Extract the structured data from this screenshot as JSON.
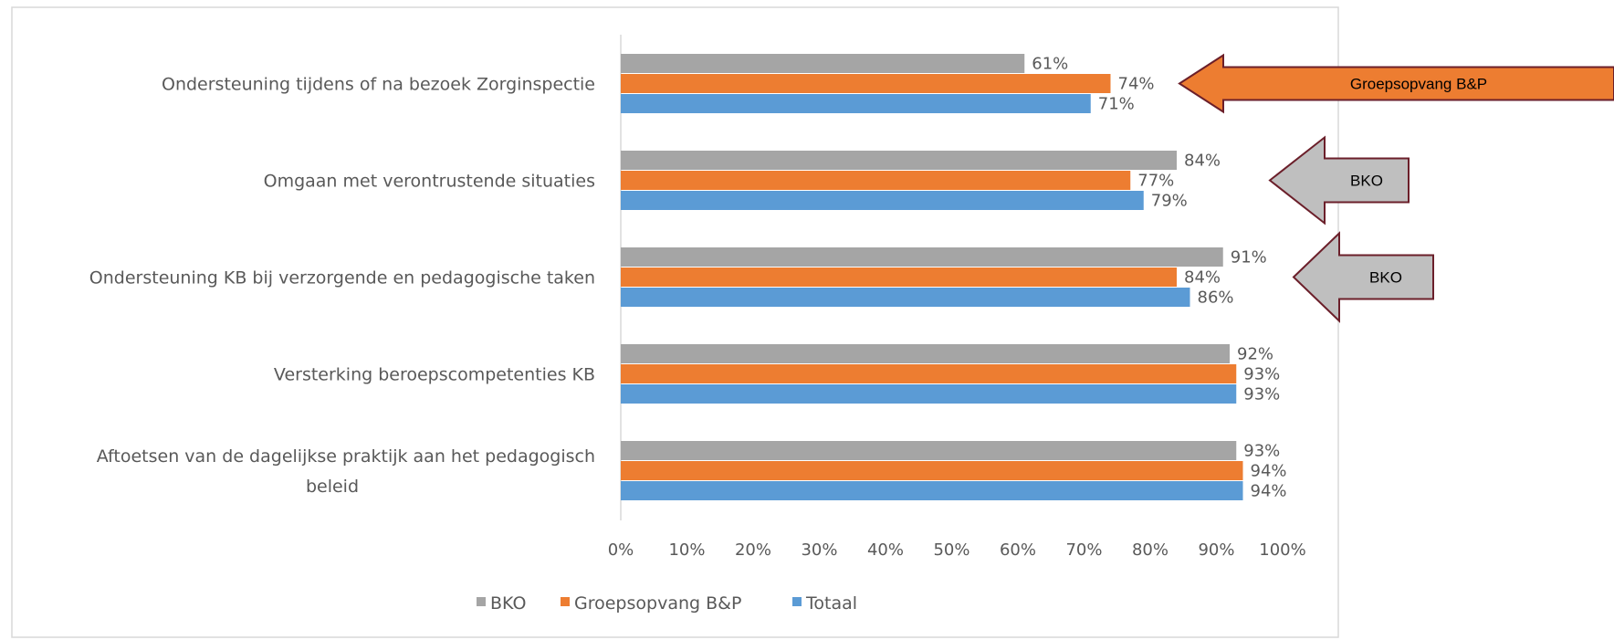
{
  "chart_data": {
    "type": "bar",
    "orientation": "horizontal",
    "title": "",
    "xlabel": "",
    "ylabel": "",
    "xlim": [
      0,
      100
    ],
    "x_ticks": [
      "0%",
      "10%",
      "20%",
      "30%",
      "40%",
      "50%",
      "60%",
      "70%",
      "80%",
      "90%",
      "100%"
    ],
    "grid": false,
    "legend_position": "bottom",
    "categories": [
      [
        "Ondersteuning tijdens of na bezoek Zorginspectie"
      ],
      [
        "Omgaan met verontrustende situaties"
      ],
      [
        "Ondersteuning KB bij verzorgende en pedagogische taken"
      ],
      [
        "Versterking beroepscompetenties KB"
      ],
      [
        "Aftoetsen van de dagelijkse praktijk aan het pedagogisch",
        "beleid"
      ]
    ],
    "series": [
      {
        "name": "BKO",
        "color": "#a5a5a5",
        "values": [
          61,
          84,
          91,
          92,
          93
        ],
        "labels": [
          "61%",
          "84%",
          "91%",
          "92%",
          "93%"
        ]
      },
      {
        "name": "Groepsopvang B&P",
        "color": "#ed7d31",
        "values": [
          74,
          77,
          84,
          93,
          94
        ],
        "labels": [
          "74%",
          "77%",
          "84%",
          "93%",
          "94%"
        ]
      },
      {
        "name": "Totaal",
        "color": "#5b9bd5",
        "values": [
          71,
          79,
          86,
          93,
          94
        ],
        "labels": [
          "71%",
          "79%",
          "86%",
          "93%",
          "94%"
        ]
      }
    ]
  },
  "annotations": [
    {
      "text": "Groepsopvang B&P",
      "category_index": 0,
      "fill": "#ed7d31",
      "stroke": "#6b1f2a"
    },
    {
      "text": "BKO",
      "category_index": 1,
      "fill": "#bfbfbf",
      "stroke": "#6b1f2a"
    },
    {
      "text": "BKO",
      "category_index": 2,
      "fill": "#bfbfbf",
      "stroke": "#6b1f2a"
    }
  ]
}
